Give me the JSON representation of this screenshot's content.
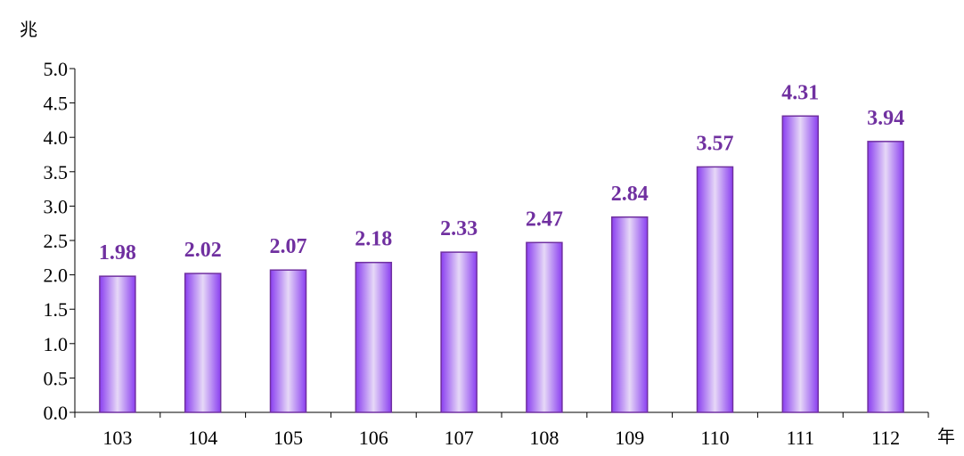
{
  "chart_data": {
    "type": "bar",
    "title": "",
    "ylabel": "兆",
    "xlabel": "年",
    "ylim": [
      0,
      5
    ],
    "y_ticks": [
      "0.0",
      "0.5",
      "1.0",
      "1.5",
      "2.0",
      "2.5",
      "3.0",
      "3.5",
      "4.0",
      "4.5",
      "5.0"
    ],
    "categories": [
      "103",
      "104",
      "105",
      "106",
      "107",
      "108",
      "109",
      "110",
      "111",
      "112"
    ],
    "values": [
      1.98,
      2.02,
      2.07,
      2.18,
      2.33,
      2.47,
      2.84,
      3.57,
      4.31,
      3.94
    ],
    "value_labels": [
      "1.98",
      "2.02",
      "2.07",
      "2.18",
      "2.33",
      "2.47",
      "2.84",
      "3.57",
      "4.31",
      "3.94"
    ],
    "grid": false,
    "legend": "none",
    "colors": {
      "bar_edge": "#7030a0",
      "bar_dark": "#8a3ff0",
      "bar_light": "#e6d8f7",
      "label": "#7030a0"
    }
  }
}
